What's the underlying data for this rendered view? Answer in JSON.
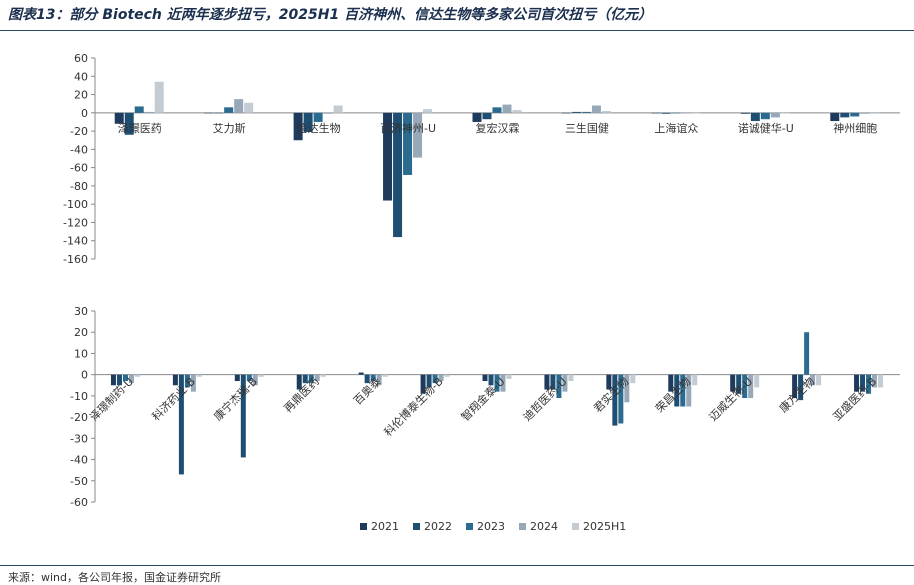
{
  "title": "图表13：部分 Biotech 近两年逐步扭亏，2025H1 百济神州、信达生物等多家公司首次扭亏（亿元）",
  "source": "来源：wind，各公司年报，国金证券研究所",
  "colors": {
    "2021": "#1e3a5c",
    "2022": "#1f4e73",
    "2023": "#2a6b8f",
    "2024": "#97a8b8",
    "2025H1": "#c3cbd3"
  },
  "chart_data": [
    {
      "type": "bar",
      "series_names": [
        "2021",
        "2022",
        "2023",
        "2024",
        "2025H1"
      ],
      "categories": [
        "泽璟医药",
        "艾力斯",
        "信达生物",
        "百济神州-U",
        "复宏汉霖",
        "三生国健",
        "上海谊众",
        "诺诚健华-U",
        "神州细胞"
      ],
      "series": [
        {
          "name": "2021",
          "values": [
            -12,
            0,
            -30,
            -96,
            -10,
            0,
            0,
            -1,
            -9
          ]
        },
        {
          "name": "2022",
          "values": [
            -24,
            0,
            -21,
            -136,
            -7,
            1,
            -1,
            -9,
            -5
          ]
        },
        {
          "name": "2023",
          "values": [
            7,
            6,
            -10,
            -68,
            6,
            1,
            0,
            -7,
            -4
          ]
        },
        {
          "name": "2024",
          "values": [
            1,
            15,
            -1,
            -49,
            9,
            8,
            0,
            -5,
            -1
          ]
        },
        {
          "name": "2025H1",
          "values": [
            34,
            11,
            8,
            4,
            3,
            2,
            0,
            0,
            -1
          ]
        }
      ],
      "ylim": [
        -160,
        60
      ],
      "yticks": [
        60,
        40,
        20,
        0,
        -20,
        -40,
        -60,
        -80,
        -100,
        -120,
        -140,
        -160
      ],
      "xlabel": "",
      "ylabel": ""
    },
    {
      "type": "bar",
      "series_names": [
        "2021",
        "2022",
        "2023",
        "2024",
        "2025H1"
      ],
      "categories": [
        "泽璟制药-U",
        "科济药业-B",
        "康宁杰瑞-B",
        "再鼎医药",
        "百奥泰",
        "科伦博泰生物-B",
        "智翔金泰-U",
        "迪哲医药-U",
        "君实生物",
        "荣昌生物",
        "迈威生物-U",
        "康方生物",
        "亚盛医药-B"
      ],
      "series": [
        {
          "name": "2021",
          "values": [
            -5,
            -5,
            -3,
            -7,
            1,
            -9,
            -3,
            -7,
            -7,
            -8,
            -8,
            -11,
            -8
          ]
        },
        {
          "name": "2022",
          "values": [
            -5,
            -47,
            -39,
            -4,
            -4,
            -6,
            -5,
            -7,
            -24,
            -15,
            -9,
            -12,
            -8
          ]
        },
        {
          "name": "2023",
          "values": [
            -3,
            -6,
            -3,
            -4,
            -3,
            -4,
            -8,
            -11,
            -23,
            -15,
            -11,
            20,
            -9
          ]
        },
        {
          "name": "2024",
          "values": [
            -4,
            -8,
            -5,
            -3,
            -5,
            -3,
            -8,
            -8,
            -13,
            -15,
            -11,
            -5,
            -6
          ]
        },
        {
          "name": "2025H1",
          "values": [
            -1,
            -1,
            -1,
            -1,
            -1,
            -1,
            -2,
            -3,
            -4,
            -5,
            -6,
            -5,
            -6
          ]
        }
      ],
      "ylim": [
        -60,
        30
      ],
      "yticks": [
        30,
        20,
        10,
        0,
        -10,
        -20,
        -30,
        -40,
        -50,
        -60
      ],
      "xlabel": "",
      "ylabel": ""
    }
  ]
}
